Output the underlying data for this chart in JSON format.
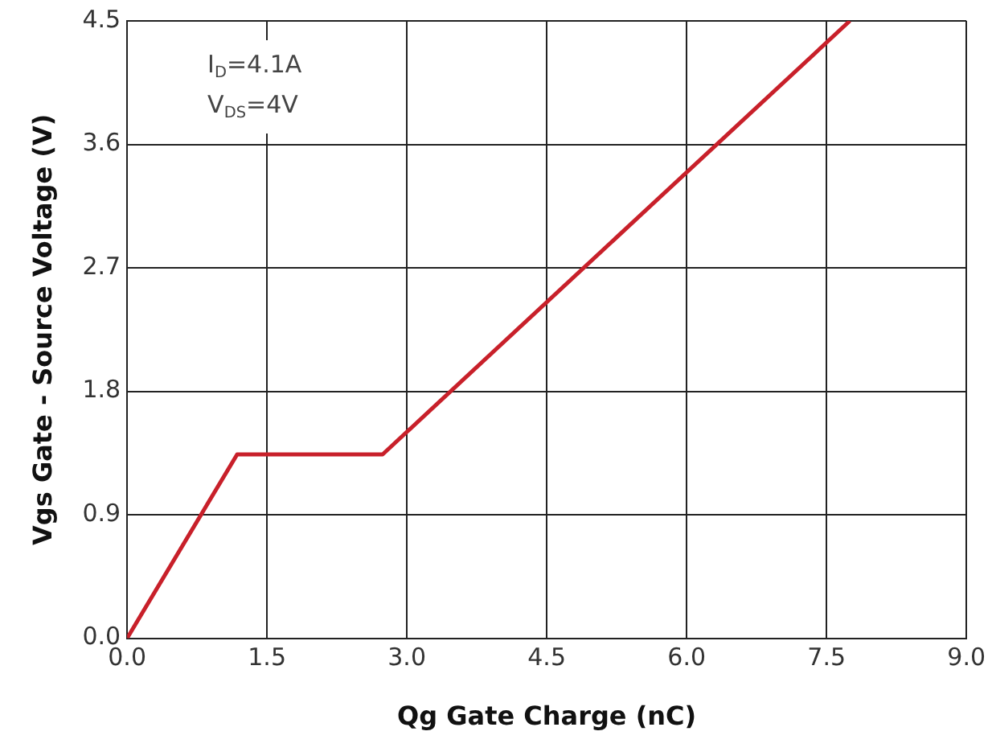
{
  "chart_data": {
    "type": "line",
    "xlabel": "Qg Gate Charge (nC)",
    "ylabel": "Vgs Gate - Source Voltage (V)",
    "x": [
      0,
      1.18,
      2.74,
      7.75
    ],
    "series": [
      {
        "color": "#c8202a",
        "values": [
          0,
          1.34,
          1.34,
          4.5
        ]
      }
    ],
    "xlim": [
      0,
      9
    ],
    "ylim": [
      0,
      4.5
    ],
    "xticks": [
      {
        "value": 0,
        "label": "0.0"
      },
      {
        "value": 1.5,
        "label": "1.5"
      },
      {
        "value": 3,
        "label": "3.0"
      },
      {
        "value": 4.5,
        "label": "4.5"
      },
      {
        "value": 6,
        "label": "6.0"
      },
      {
        "value": 7.5,
        "label": "7.5"
      },
      {
        "value": 9,
        "label": "9.0"
      }
    ],
    "yticks": [
      {
        "value": 0,
        "label": "0.0"
      },
      {
        "value": 0.9,
        "label": "0.9"
      },
      {
        "value": 1.8,
        "label": "1.8"
      },
      {
        "value": 2.7,
        "label": "2.7"
      },
      {
        "value": 3.6,
        "label": "3.6"
      },
      {
        "value": 4.5,
        "label": "4.5"
      }
    ],
    "grid": true,
    "legend": false,
    "marker": "none",
    "line_style": "solid",
    "annotations": [
      "I$_{D}$=4.1A",
      "V$_{DS}$=4V"
    ]
  }
}
